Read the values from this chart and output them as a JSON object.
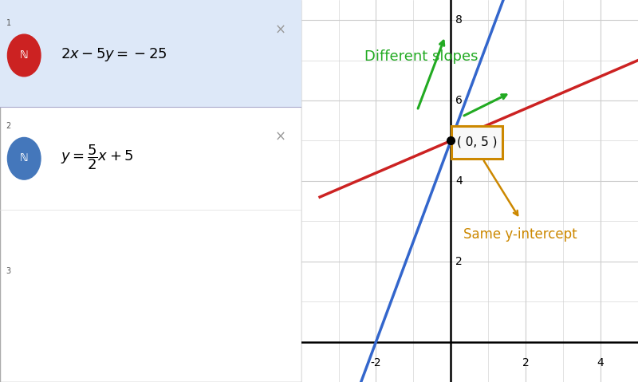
{
  "xlim": [
    -3.5,
    5
  ],
  "ylim": [
    -0.5,
    8.5
  ],
  "xticks": [
    -2,
    0,
    2,
    4
  ],
  "yticks": [
    2,
    4,
    6,
    8
  ],
  "line1_slope": 0.4,
  "line1_intercept": 5,
  "line1_color": "#cc2222",
  "line2_slope": 2.5,
  "line2_intercept": 5,
  "line2_color": "#3366cc",
  "green_color": "#22aa22",
  "annotation_color": "#cc8800",
  "point": [
    0,
    5
  ],
  "text_diff_slopes": "Different slopes",
  "text_same_intercept": "Same y-intercept",
  "bg_graph": "#ffffff",
  "grid_color": "#cccccc"
}
